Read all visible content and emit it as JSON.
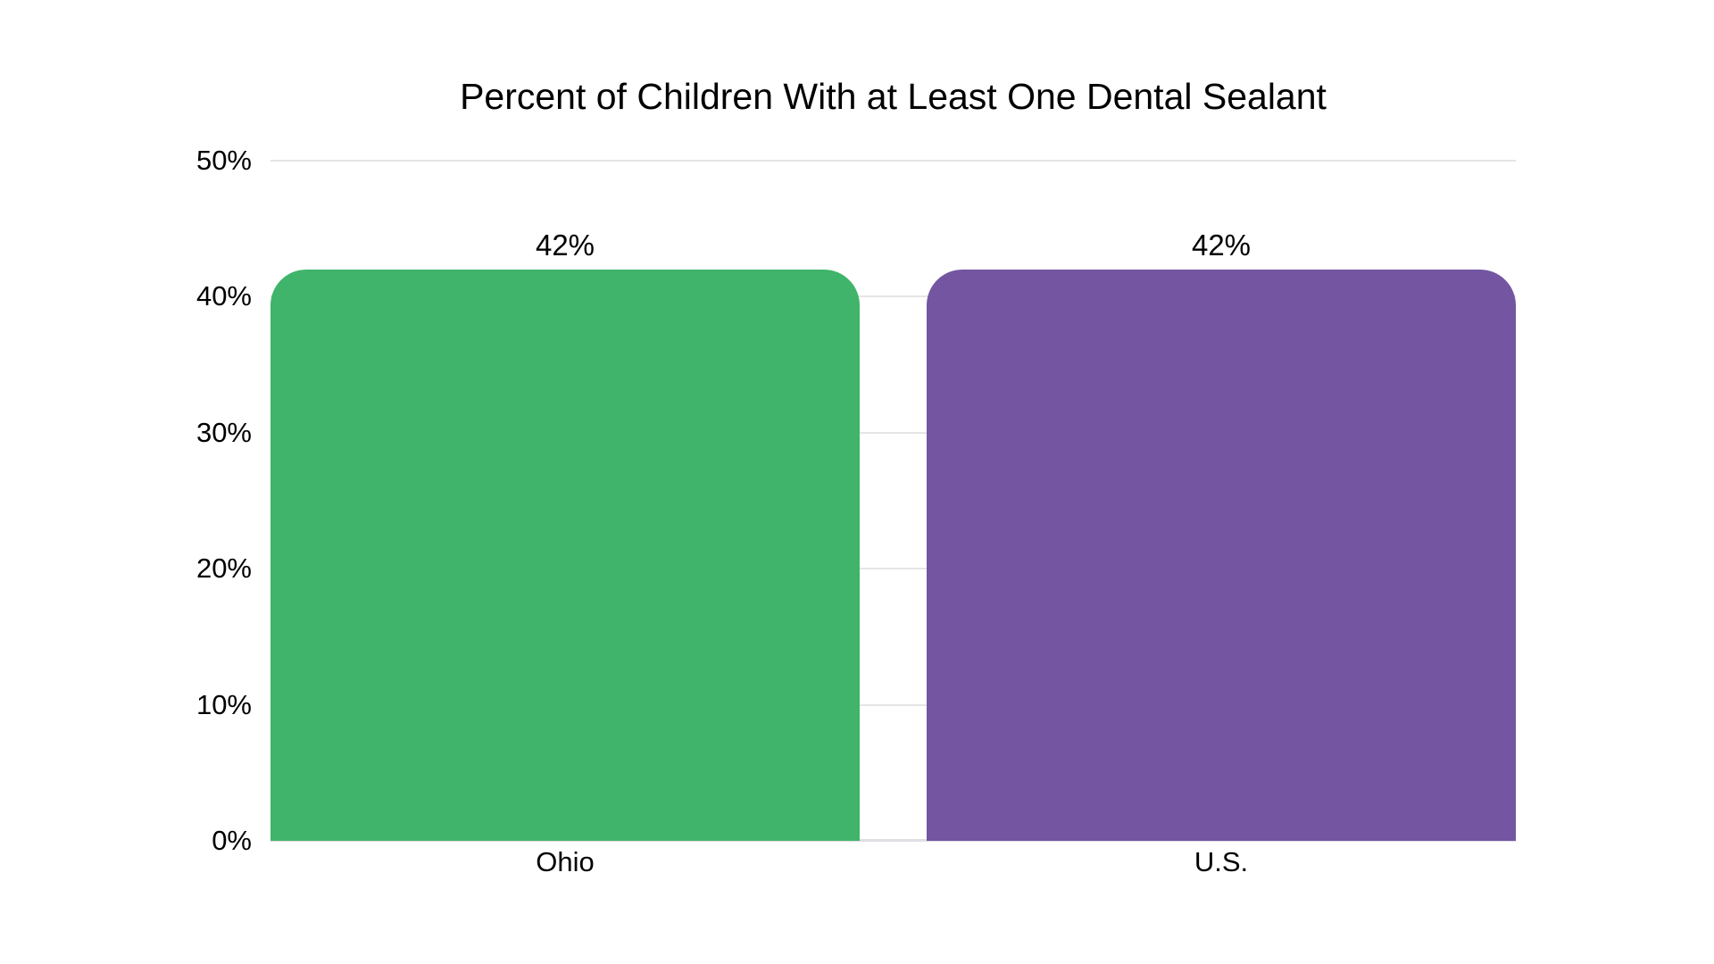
{
  "page": {
    "background": "#ffffff",
    "text_color": "#000000"
  },
  "chart_data": {
    "type": "bar",
    "title": "Percent of Children With at Least One Dental Sealant",
    "categories": [
      "Ohio",
      "U.S."
    ],
    "values": [
      42,
      42
    ],
    "value_labels": [
      "42%",
      "42%"
    ],
    "series_colors": [
      "#40B46A",
      "#7355A1"
    ],
    "xlabel": "",
    "ylabel": "",
    "ylim": [
      0,
      50
    ],
    "yticks": [
      {
        "value": 0,
        "label": "0%"
      },
      {
        "value": 10,
        "label": "10%"
      },
      {
        "value": 20,
        "label": "20%"
      },
      {
        "value": 30,
        "label": "30%"
      },
      {
        "value": 40,
        "label": "40%"
      },
      {
        "value": 50,
        "label": "50%"
      }
    ],
    "grid": true,
    "grid_color": "#e5e5e5",
    "baseline_color": "#e0dee3",
    "legend_position": "none",
    "bar_corner_radius": 40
  }
}
